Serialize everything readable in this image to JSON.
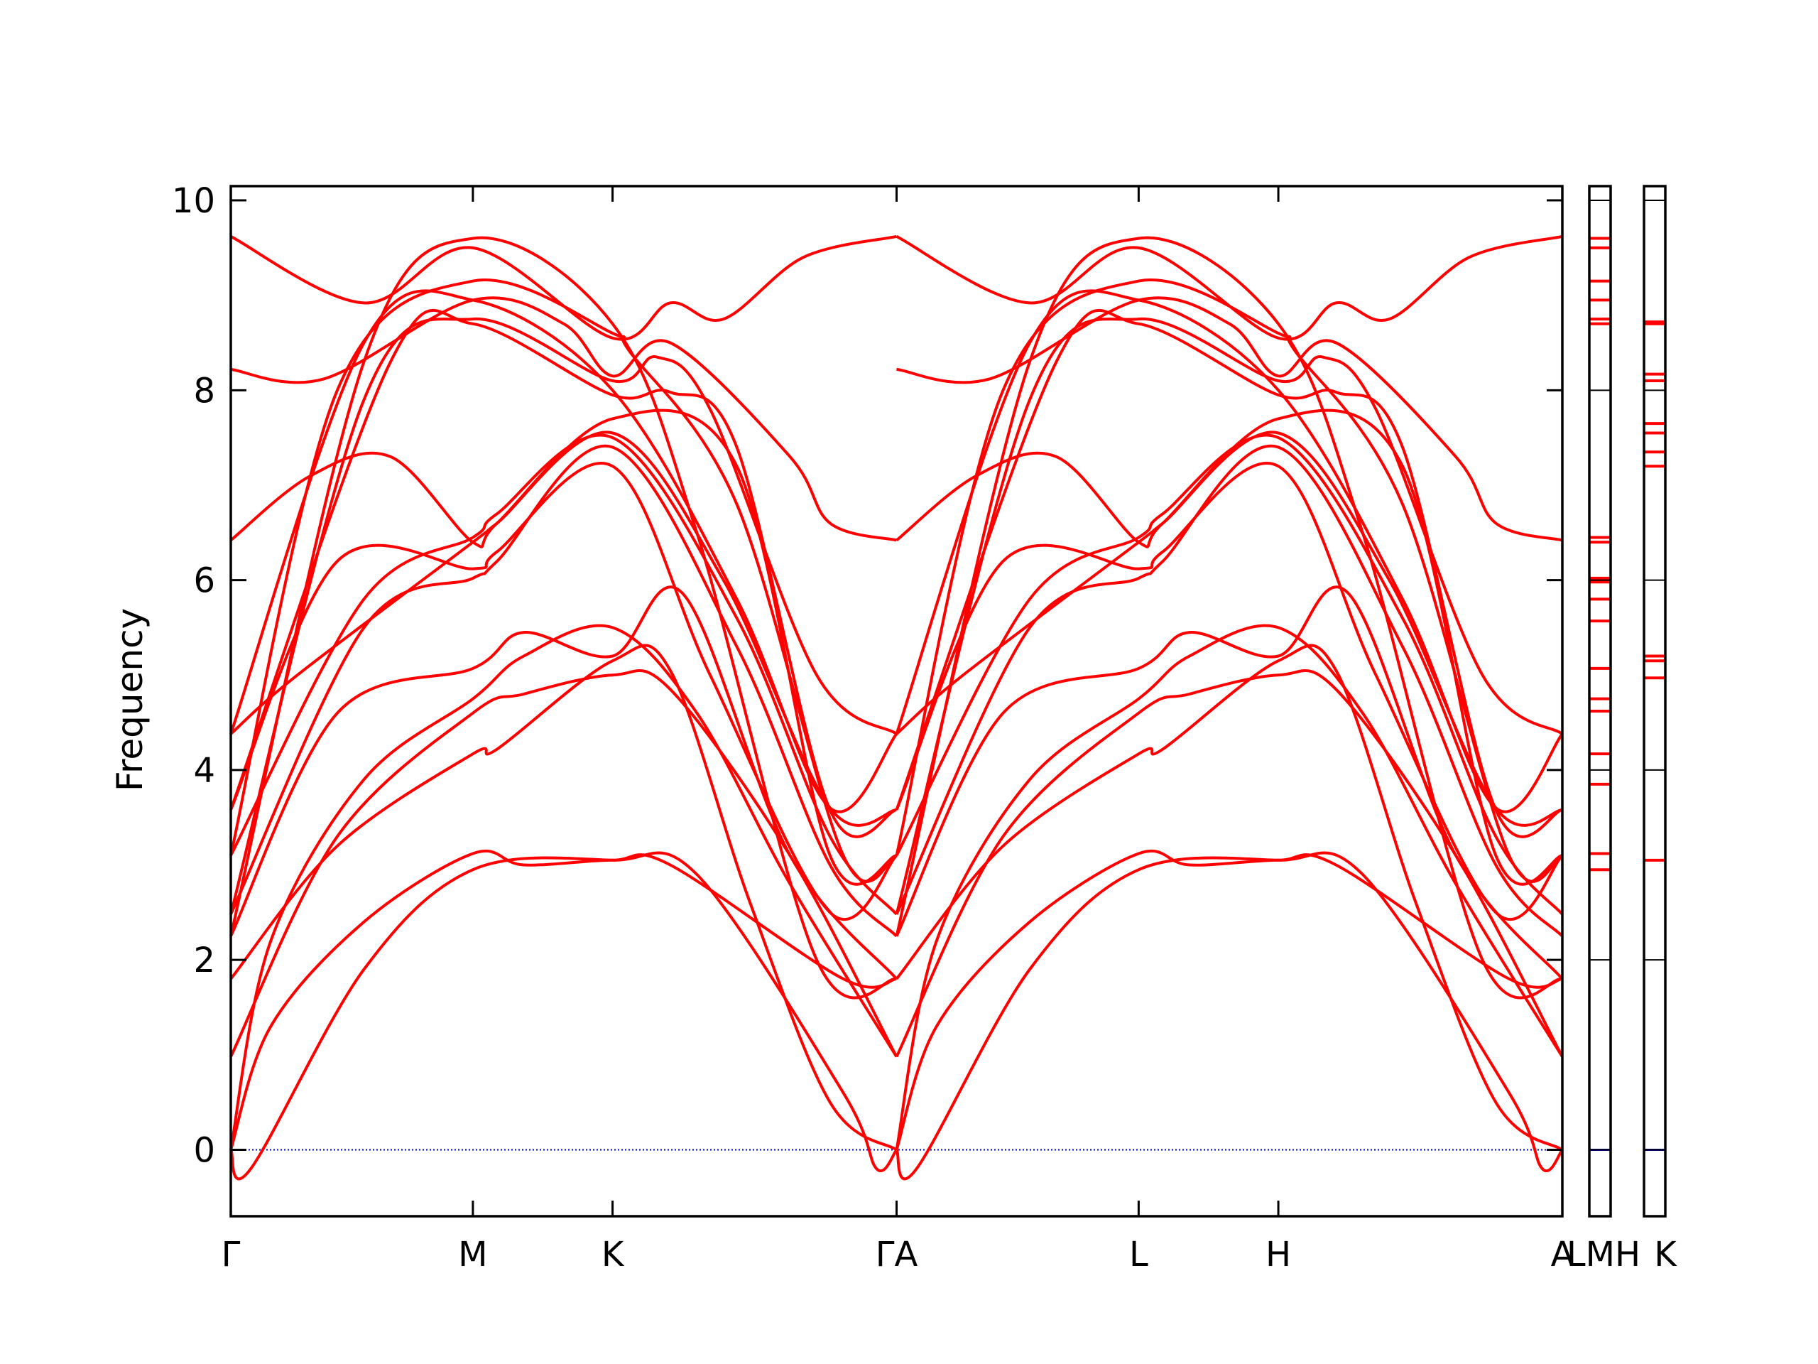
{
  "chart_data": {
    "type": "line",
    "ylabel": "Frequency",
    "ylim": [
      -0.7,
      10.15
    ],
    "yticks": [
      0,
      2,
      4,
      6,
      8,
      10
    ],
    "line_color": "#ff0000",
    "zero_line_color": "#0000cc",
    "kpoints": [
      {
        "label": "Γ",
        "x": 0.0
      },
      {
        "label": "M",
        "x": 0.1818
      },
      {
        "label": "K",
        "x": 0.2867
      },
      {
        "label": "ΓA",
        "x": 0.5
      },
      {
        "label": "L",
        "x": 0.6818
      },
      {
        "label": "H",
        "x": 0.7867
      },
      {
        "label": "A",
        "x": 1.0
      }
    ],
    "side_panels": [
      {
        "label": "LMH",
        "levels": [
          2.95,
          3.12,
          3.85,
          4.17,
          4.62,
          4.75,
          5.07,
          5.57,
          5.8,
          5.98,
          6.02,
          6.4,
          6.45,
          8.7,
          8.75,
          8.95,
          9.15,
          9.5,
          9.6
        ]
      },
      {
        "label": "K",
        "levels": [
          3.05,
          4.97,
          5.15,
          5.2,
          7.2,
          7.35,
          7.55,
          7.65,
          8.1,
          8.17,
          8.7,
          8.72
        ]
      }
    ],
    "series": [
      {
        "points": [
          [
            0,
            0
          ],
          [
            0.03,
            2.2
          ],
          [
            0.1,
            3.9
          ],
          [
            0.1818,
            4.75
          ],
          [
            0.22,
            5.2
          ],
          [
            0.2867,
            5.5
          ],
          [
            0.35,
            4.6
          ],
          [
            0.42,
            2.8
          ],
          [
            0.5,
            0.98
          ]
        ]
      },
      {
        "points": [
          [
            0,
            0.98
          ],
          [
            0.08,
            3.3
          ],
          [
            0.1818,
            4.6
          ],
          [
            0.22,
            4.8
          ],
          [
            0.2867,
            5.0
          ],
          [
            0.33,
            4.85
          ],
          [
            0.42,
            3.1
          ],
          [
            0.5,
            0.98
          ]
        ]
      },
      {
        "points": [
          [
            0,
            0
          ],
          [
            0.015,
            -0.2
          ],
          [
            0.1,
            1.9
          ],
          [
            0.1818,
            2.95
          ],
          [
            0.2867,
            3.05
          ],
          [
            0.35,
            2.9
          ],
          [
            0.46,
            0.6
          ],
          [
            0.485,
            -0.2
          ],
          [
            0.5,
            0
          ]
        ]
      },
      {
        "points": [
          [
            0,
            0
          ],
          [
            0.03,
            1.3
          ],
          [
            0.1,
            2.4
          ],
          [
            0.1818,
            3.12
          ],
          [
            0.22,
            3.0
          ],
          [
            0.2867,
            3.05
          ],
          [
            0.33,
            3.0
          ],
          [
            0.46,
            1.8
          ],
          [
            0.5,
            1.8
          ]
        ]
      },
      {
        "points": [
          [
            0,
            1.8
          ],
          [
            0.08,
            3.2
          ],
          [
            0.1818,
            4.17
          ],
          [
            0.2,
            4.22
          ],
          [
            0.2867,
            5.15
          ],
          [
            0.33,
            5.05
          ],
          [
            0.39,
            2.6
          ],
          [
            0.45,
            0.5
          ],
          [
            0.5,
            0
          ]
        ]
      },
      {
        "points": [
          [
            0,
            2.25
          ],
          [
            0.08,
            4.6
          ],
          [
            0.1818,
            5.07
          ],
          [
            0.22,
            5.45
          ],
          [
            0.2867,
            5.2
          ],
          [
            0.34,
            5.85
          ],
          [
            0.42,
            3.1
          ],
          [
            0.5,
            1.8
          ]
        ]
      },
      {
        "points": [
          [
            0,
            2.48
          ],
          [
            0.1,
            5.5
          ],
          [
            0.1818,
            6.02
          ],
          [
            0.2,
            6.2
          ],
          [
            0.2867,
            7.4
          ],
          [
            0.38,
            5.3
          ],
          [
            0.45,
            3.0
          ],
          [
            0.5,
            2.25
          ]
        ]
      },
      {
        "points": [
          [
            0,
            3.1
          ],
          [
            0.1,
            5.8
          ],
          [
            0.1818,
            6.45
          ],
          [
            0.2,
            6.7
          ],
          [
            0.2867,
            7.5
          ],
          [
            0.38,
            5.6
          ],
          [
            0.45,
            3.3
          ],
          [
            0.5,
            2.48
          ]
        ]
      },
      {
        "points": [
          [
            0,
            3.58
          ],
          [
            0.08,
            6.2
          ],
          [
            0.1818,
            6.12
          ],
          [
            0.2,
            6.3
          ],
          [
            0.2867,
            7.2
          ],
          [
            0.36,
            5.0
          ],
          [
            0.45,
            2.5
          ],
          [
            0.5,
            3.1
          ]
        ]
      },
      {
        "points": [
          [
            0,
            4.38
          ],
          [
            0.05,
            5.0
          ],
          [
            0.1818,
            6.4
          ],
          [
            0.2,
            6.6
          ],
          [
            0.2867,
            7.55
          ],
          [
            0.37,
            6.0
          ],
          [
            0.45,
            3.6
          ],
          [
            0.5,
            3.58
          ]
        ]
      },
      {
        "points": [
          [
            0,
            6.42
          ],
          [
            0.06,
            7.1
          ],
          [
            0.12,
            7.3
          ],
          [
            0.1818,
            6.4
          ],
          [
            0.2,
            6.6
          ],
          [
            0.2867,
            7.7
          ],
          [
            0.38,
            7.2
          ],
          [
            0.45,
            3.1
          ],
          [
            0.5,
            3.1
          ]
        ]
      },
      {
        "points": [
          [
            0,
            3.58
          ],
          [
            0.12,
            8.3
          ],
          [
            0.1818,
            8.7
          ],
          [
            0.2867,
            7.95
          ],
          [
            0.33,
            7.98
          ],
          [
            0.38,
            7.4
          ],
          [
            0.45,
            3.58
          ],
          [
            0.5,
            3.58
          ]
        ]
      },
      {
        "points": [
          [
            0,
            2.48
          ],
          [
            0.1,
            7.9
          ],
          [
            0.1818,
            8.75
          ],
          [
            0.2867,
            8.1
          ],
          [
            0.32,
            8.35
          ],
          [
            0.36,
            7.8
          ],
          [
            0.44,
            5.0
          ],
          [
            0.5,
            4.38
          ]
        ]
      },
      {
        "points": [
          [
            0,
            8.22
          ],
          [
            0.07,
            8.12
          ],
          [
            0.1818,
            8.95
          ],
          [
            0.25,
            8.7
          ],
          [
            0.2867,
            8.15
          ],
          [
            0.33,
            8.5
          ],
          [
            0.42,
            7.3
          ],
          [
            0.45,
            6.6
          ],
          [
            0.5,
            6.42
          ]
        ]
      },
      {
        "points": [
          [
            0,
            3.1
          ],
          [
            0.08,
            8.0
          ],
          [
            0.1818,
            9.15
          ],
          [
            0.2867,
            8.6
          ],
          [
            0.3,
            8.4
          ],
          [
            0.38,
            6.8
          ],
          [
            0.46,
            3.1
          ],
          [
            0.5,
            3.1
          ]
        ]
      },
      {
        "points": [
          [
            0,
            9.62
          ],
          [
            0.1,
            8.92
          ],
          [
            0.1818,
            9.5
          ],
          [
            0.2867,
            8.55
          ],
          [
            0.33,
            8.92
          ],
          [
            0.37,
            8.75
          ],
          [
            0.43,
            9.4
          ],
          [
            0.5,
            9.62
          ]
        ]
      },
      {
        "points": [
          [
            0,
            2.25
          ],
          [
            0.1,
            8.3
          ],
          [
            0.1818,
            9.6
          ],
          [
            0.2867,
            8.7
          ],
          [
            0.35,
            6.5
          ],
          [
            0.44,
            2.0
          ],
          [
            0.5,
            1.8
          ]
        ]
      },
      {
        "points": [
          [
            0,
            4.38
          ],
          [
            0.1,
            8.5
          ],
          [
            0.1818,
            8.95
          ],
          [
            0.2867,
            8.0
          ],
          [
            0.38,
            5.8
          ],
          [
            0.45,
            3.6
          ],
          [
            0.5,
            4.38
          ]
        ]
      }
    ]
  }
}
